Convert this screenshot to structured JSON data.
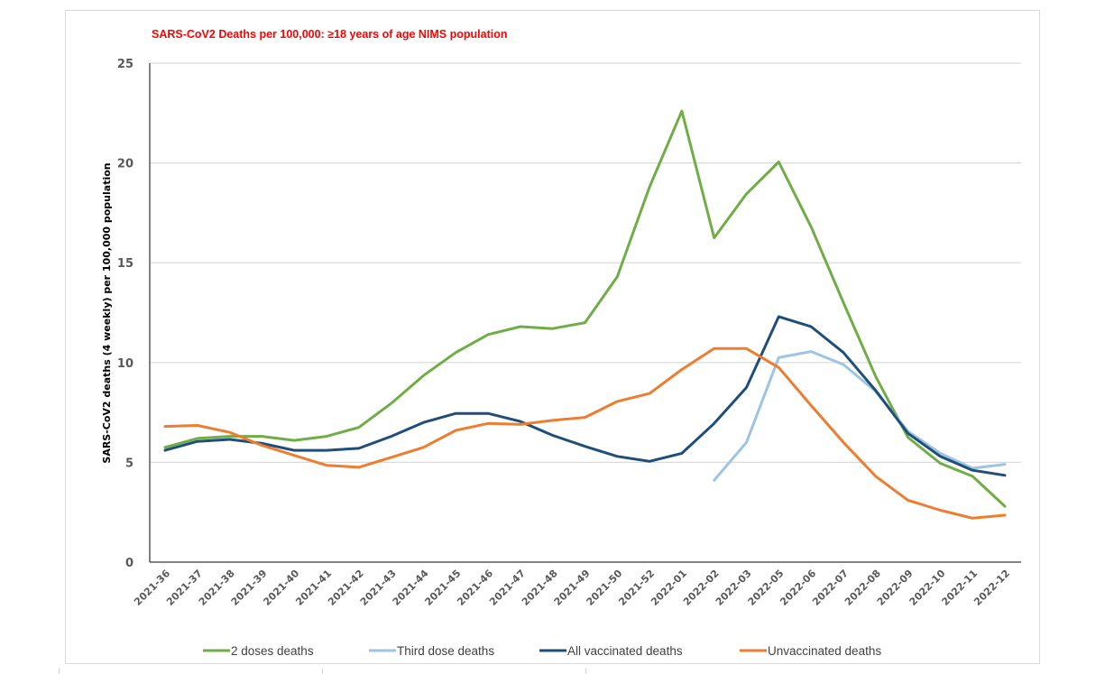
{
  "chart_data": {
    "type": "line",
    "title": "SARS-CoV2 Deaths per 100,000:  ≥18  years of age NIMS population",
    "xlabel": "",
    "ylabel": "SARS-CoV2 deaths (4 weekly) per 100,000  population",
    "ylim": [
      0,
      25
    ],
    "yticks": [
      0,
      5,
      10,
      15,
      20,
      25
    ],
    "grid": true,
    "legend_position": "bottom",
    "categories": [
      "2021-36",
      "2021-37",
      "2021-38",
      "2021-39",
      "2021-40",
      "2021-41",
      "2021-42",
      "2021-43",
      "2021-44",
      "2021-45",
      "2021-46",
      "2021-47",
      "2021-48",
      "2021-49",
      "2021-50",
      "2021-52",
      "2022-01",
      "2022-02",
      "2022-03",
      "2022-05",
      "2022-06",
      "2022-07",
      "2022-08",
      "2022-09",
      "2022-10",
      "2022-11",
      "2022-12"
    ],
    "series": [
      {
        "name": "2 doses deaths",
        "color": "#70ad47",
        "values": [
          5.75,
          6.2,
          6.3,
          6.3,
          6.1,
          6.3,
          6.75,
          7.95,
          9.35,
          10.5,
          11.4,
          11.8,
          11.7,
          12.0,
          14.3,
          18.8,
          22.6,
          16.25,
          18.45,
          20.05,
          16.8,
          13.0,
          9.3,
          6.25,
          4.95,
          4.3,
          2.8
        ]
      },
      {
        "name": "Third dose deaths",
        "color": "#9dc3e6",
        "values": [
          null,
          null,
          null,
          null,
          null,
          null,
          null,
          null,
          null,
          null,
          null,
          null,
          null,
          null,
          null,
          null,
          null,
          4.1,
          6.0,
          10.25,
          10.55,
          9.9,
          8.55,
          6.55,
          5.45,
          4.7,
          4.9
        ]
      },
      {
        "name": "All vaccinated deaths",
        "color": "#1f4e79",
        "values": [
          5.6,
          6.05,
          6.15,
          5.95,
          5.6,
          5.6,
          5.7,
          6.3,
          7.0,
          7.45,
          7.45,
          7.05,
          6.35,
          5.8,
          5.3,
          5.05,
          5.45,
          6.95,
          8.75,
          12.3,
          11.8,
          10.5,
          8.6,
          6.45,
          5.3,
          4.6,
          4.35
        ]
      },
      {
        "name": "Unvaccinated deaths",
        "color": "#ed7d31",
        "values": [
          6.8,
          6.85,
          6.5,
          5.85,
          5.35,
          4.85,
          4.75,
          5.25,
          5.75,
          6.6,
          6.95,
          6.9,
          7.1,
          7.25,
          8.05,
          8.45,
          9.65,
          10.7,
          10.7,
          9.75,
          7.85,
          6.0,
          4.3,
          3.1,
          2.6,
          2.2,
          2.35
        ]
      }
    ]
  }
}
